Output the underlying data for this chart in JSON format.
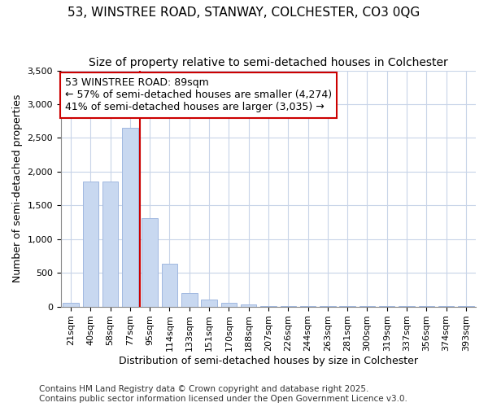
{
  "title": "53, WINSTREE ROAD, STANWAY, COLCHESTER, CO3 0QG",
  "subtitle": "Size of property relative to semi-detached houses in Colchester",
  "xlabel": "Distribution of semi-detached houses by size in Colchester",
  "ylabel": "Number of semi-detached properties",
  "categories": [
    "21sqm",
    "40sqm",
    "58sqm",
    "77sqm",
    "95sqm",
    "114sqm",
    "133sqm",
    "151sqm",
    "170sqm",
    "188sqm",
    "207sqm",
    "226sqm",
    "244sqm",
    "263sqm",
    "281sqm",
    "300sqm",
    "319sqm",
    "337sqm",
    "356sqm",
    "374sqm",
    "393sqm"
  ],
  "values": [
    60,
    1850,
    1850,
    2650,
    1310,
    640,
    200,
    100,
    50,
    30,
    10,
    5,
    5,
    3,
    2,
    2,
    2,
    2,
    2,
    2,
    2
  ],
  "bar_color": "#c8d8f0",
  "bar_edge_color": "#a0b8e0",
  "property_line_x": 3.5,
  "annotation_title": "53 WINSTREE ROAD: 89sqm",
  "annotation_line1": "← 57% of semi-detached houses are smaller (4,274)",
  "annotation_line2": "41% of semi-detached houses are larger (3,035) →",
  "annotation_box_color": "#ffffff",
  "annotation_box_edge": "#cc0000",
  "vline_color": "#cc0000",
  "ylim": [
    0,
    3500
  ],
  "yticks": [
    0,
    500,
    1000,
    1500,
    2000,
    2500,
    3000,
    3500
  ],
  "footnote1": "Contains HM Land Registry data © Crown copyright and database right 2025.",
  "footnote2": "Contains public sector information licensed under the Open Government Licence v3.0.",
  "background_color": "#ffffff",
  "plot_bg_color": "#ffffff",
  "title_fontsize": 11,
  "subtitle_fontsize": 10,
  "axis_label_fontsize": 9,
  "tick_fontsize": 8,
  "annotation_fontsize": 9,
  "footnote_fontsize": 7.5,
  "grid_color": "#c8d4e8"
}
